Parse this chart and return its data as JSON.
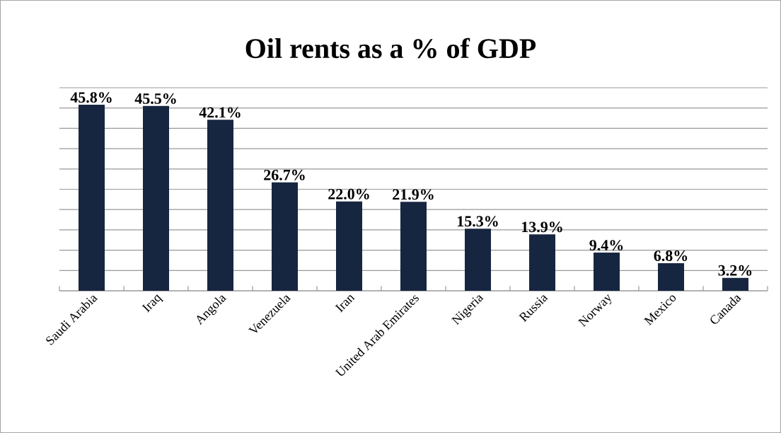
{
  "chart_data": {
    "type": "bar",
    "title": "Oil rents as a % of GDP",
    "categories": [
      "Saudi Arabia",
      "Iraq",
      "Angola",
      "Venezuela",
      "Iran",
      "United Arab Emirates",
      "Nigeria",
      "Russia",
      "Norway",
      "Mexico",
      "Canada"
    ],
    "values": [
      45.8,
      45.5,
      42.1,
      26.7,
      22.0,
      21.9,
      15.3,
      13.9,
      9.4,
      6.8,
      3.2
    ],
    "value_labels": [
      "45.8%",
      "45.5%",
      "42.1%",
      "26.7%",
      "22.0%",
      "21.9%",
      "15.3%",
      "13.9%",
      "9.4%",
      "6.8%",
      "3.2%"
    ],
    "color": "#172640",
    "ylim": [
      0,
      50
    ],
    "yticks": [
      {
        "value": 0,
        "label": null
      },
      {
        "value": 5,
        "label": null
      },
      {
        "value": 10,
        "label": null
      },
      {
        "value": 15,
        "label": null
      },
      {
        "value": 20,
        "label": null
      },
      {
        "value": 25,
        "label": null
      },
      {
        "value": 30,
        "label": null
      },
      {
        "value": 35,
        "label": null
      },
      {
        "value": 40,
        "label": null
      },
      {
        "value": 45,
        "label": null
      },
      {
        "value": 50,
        "label": null
      }
    ],
    "grid": "y",
    "tick_labels": "x"
  }
}
